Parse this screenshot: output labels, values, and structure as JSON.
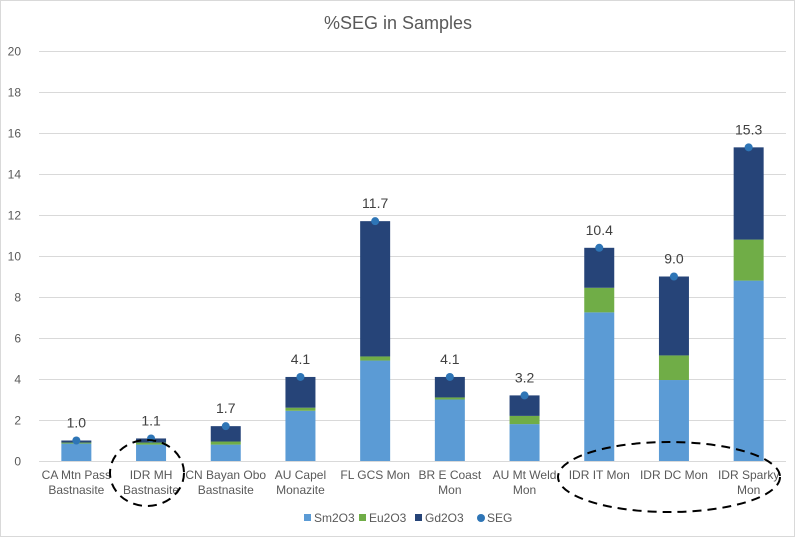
{
  "chart_data": {
    "type": "bar",
    "stacked": true,
    "title": "%SEG in Samples",
    "xlabel": "",
    "ylabel": "",
    "ylim": [
      0,
      20
    ],
    "yticks": [
      0,
      2,
      4,
      6,
      8,
      10,
      12,
      14,
      16,
      18,
      20
    ],
    "grid": true,
    "legend_position": "bottom",
    "categories": [
      [
        "CA Mtn Pass",
        "Bastnasite"
      ],
      [
        "IDR MH",
        "Bastnasite"
      ],
      [
        "CN Bayan Obo",
        "Bastnasite"
      ],
      [
        "AU Capel",
        "Monazite"
      ],
      [
        "FL GCS Mon"
      ],
      [
        "BR E Coast",
        "Mon"
      ],
      [
        "AU Mt Weld",
        "Mon"
      ],
      [
        "IDR IT Mon"
      ],
      [
        "IDR DC Mon"
      ],
      [
        "IDR Sparky",
        "Mon"
      ]
    ],
    "series": [
      {
        "name": "Sm2O3",
        "kind": "bar",
        "color": "#5b9bd5",
        "values": [
          0.85,
          0.8,
          0.8,
          2.45,
          4.9,
          3.0,
          1.8,
          7.25,
          3.95,
          8.8
        ]
      },
      {
        "name": "Eu2O3",
        "kind": "bar",
        "color": "#70ad47",
        "values": [
          0.05,
          0.1,
          0.15,
          0.15,
          0.2,
          0.1,
          0.4,
          1.2,
          1.2,
          2.0
        ]
      },
      {
        "name": "Gd2O3",
        "kind": "bar",
        "color": "#264478",
        "values": [
          0.1,
          0.2,
          0.75,
          1.5,
          6.6,
          1.0,
          1.0,
          1.95,
          3.85,
          4.5
        ]
      },
      {
        "name": "SEG",
        "kind": "marker",
        "color": "#2e75b6",
        "values": [
          1.0,
          1.1,
          1.7,
          4.1,
          11.7,
          4.1,
          3.2,
          10.4,
          9.0,
          15.3
        ]
      }
    ],
    "data_labels": [
      "1.0",
      "1.1",
      "1.7",
      "4.1",
      "11.7",
      "4.1",
      "3.2",
      "10.4",
      "9.0",
      "15.3"
    ],
    "annotations": [
      {
        "type": "dashed-ellipse",
        "encloses": [
          "IDR MH Bastnasite"
        ]
      },
      {
        "type": "dashed-ellipse",
        "encloses": [
          "IDR IT Mon",
          "IDR DC Mon",
          "IDR Sparky Mon"
        ]
      }
    ]
  }
}
